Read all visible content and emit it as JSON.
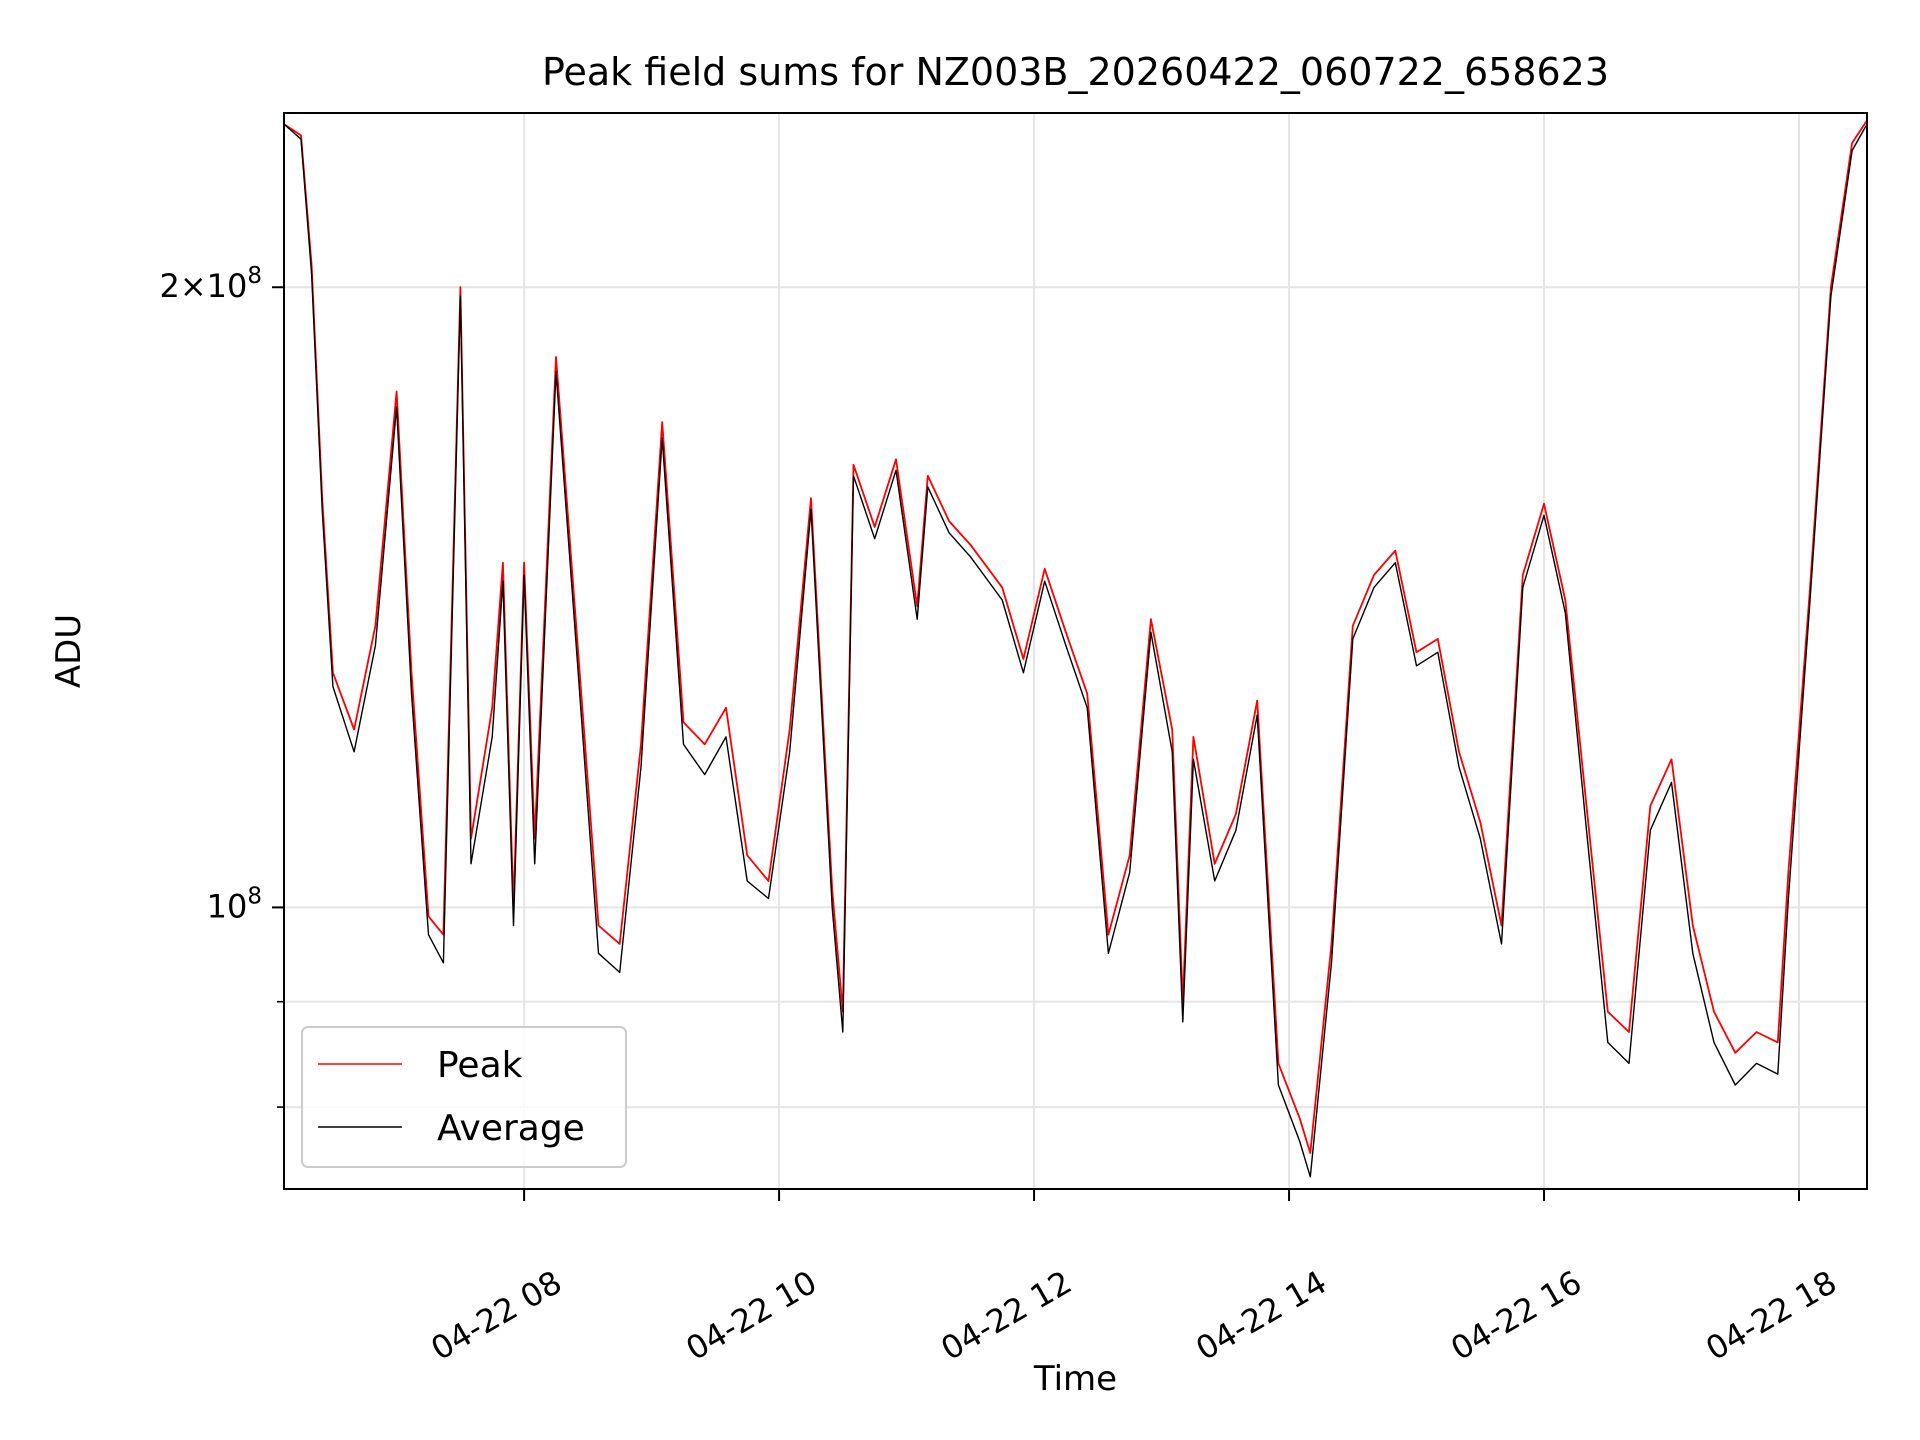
{
  "chart_data": {
    "type": "line",
    "title": "Peak field sums for NZ003B_20260422_060722_658623",
    "xlabel": "Time",
    "ylabel": "ADU",
    "yscale": "log",
    "ylim": [
      73000000,
      243000000
    ],
    "xlim": [
      "2026-04-22 06:07",
      "2026-04-22 18:32"
    ],
    "x_ticks": [
      {
        "t": "2026-04-22 08:00",
        "label": "04-22 08"
      },
      {
        "t": "2026-04-22 10:00",
        "label": "04-22 10"
      },
      {
        "t": "2026-04-22 12:00",
        "label": "04-22 12"
      },
      {
        "t": "2026-04-22 14:00",
        "label": "04-22 14"
      },
      {
        "t": "2026-04-22 16:00",
        "label": "04-22 16"
      },
      {
        "t": "2026-04-22 18:00",
        "label": "04-22 18"
      }
    ],
    "y_major_ticks": [
      {
        "value": 100000000,
        "base": "10",
        "exp": "8",
        "coef": ""
      },
      {
        "value": 200000000,
        "base": "10",
        "exp": "8",
        "coef": "2"
      }
    ],
    "y_minor_ticks": [
      80000000,
      90000000
    ],
    "grid": true,
    "legend_position": "lower-left",
    "series": [
      {
        "name": "Peak",
        "color": "#ff0000",
        "x": [
          "2026-04-22 06:07",
          "2026-04-22 06:15",
          "2026-04-22 06:20",
          "2026-04-22 06:25",
          "2026-04-22 06:30",
          "2026-04-22 06:40",
          "2026-04-22 06:50",
          "2026-04-22 07:00",
          "2026-04-22 07:07",
          "2026-04-22 07:15",
          "2026-04-22 07:22",
          "2026-04-22 07:30",
          "2026-04-22 07:35",
          "2026-04-22 07:45",
          "2026-04-22 07:50",
          "2026-04-22 07:55",
          "2026-04-22 08:00",
          "2026-04-22 08:05",
          "2026-04-22 08:15",
          "2026-04-22 08:25",
          "2026-04-22 08:35",
          "2026-04-22 08:45",
          "2026-04-22 08:55",
          "2026-04-22 09:05",
          "2026-04-22 09:15",
          "2026-04-22 09:25",
          "2026-04-22 09:35",
          "2026-04-22 09:45",
          "2026-04-22 09:55",
          "2026-04-22 10:05",
          "2026-04-22 10:15",
          "2026-04-22 10:25",
          "2026-04-22 10:30",
          "2026-04-22 10:35",
          "2026-04-22 10:45",
          "2026-04-22 10:55",
          "2026-04-22 11:05",
          "2026-04-22 11:10",
          "2026-04-22 11:20",
          "2026-04-22 11:30",
          "2026-04-22 11:45",
          "2026-04-22 11:55",
          "2026-04-22 12:05",
          "2026-04-22 12:15",
          "2026-04-22 12:25",
          "2026-04-22 12:35",
          "2026-04-22 12:45",
          "2026-04-22 12:55",
          "2026-04-22 13:05",
          "2026-04-22 13:10",
          "2026-04-22 13:15",
          "2026-04-22 13:25",
          "2026-04-22 13:35",
          "2026-04-22 13:45",
          "2026-04-22 13:55",
          "2026-04-22 14:05",
          "2026-04-22 14:10",
          "2026-04-22 14:20",
          "2026-04-22 14:30",
          "2026-04-22 14:40",
          "2026-04-22 14:50",
          "2026-04-22 15:00",
          "2026-04-22 15:10",
          "2026-04-22 15:20",
          "2026-04-22 15:30",
          "2026-04-22 15:40",
          "2026-04-22 15:50",
          "2026-04-22 16:00",
          "2026-04-22 16:10",
          "2026-04-22 16:20",
          "2026-04-22 16:30",
          "2026-04-22 16:40",
          "2026-04-22 16:50",
          "2026-04-22 17:00",
          "2026-04-22 17:10",
          "2026-04-22 17:20",
          "2026-04-22 17:30",
          "2026-04-22 17:40",
          "2026-04-22 17:50",
          "2026-04-22 17:55",
          "2026-04-22 18:05",
          "2026-04-22 18:15",
          "2026-04-22 18:25",
          "2026-04-22 18:32"
        ],
        "y": [
          240000000,
          237000000,
          205000000,
          158000000,
          130000000,
          122000000,
          137000000,
          178000000,
          130000000,
          99000000,
          97000000,
          200000000,
          108000000,
          125000000,
          147000000,
          100000000,
          147000000,
          108000000,
          185000000,
          135000000,
          98000000,
          96000000,
          120000000,
          172000000,
          123000000,
          120000000,
          125000000,
          106000000,
          103000000,
          122000000,
          158000000,
          102000000,
          89000000,
          164000000,
          153000000,
          165000000,
          140000000,
          162000000,
          154000000,
          150000000,
          143000000,
          132000000,
          146000000,
          136000000,
          127000000,
          97000000,
          106000000,
          138000000,
          122000000,
          90000000,
          121000000,
          105000000,
          111000000,
          126000000,
          84000000,
          79000000,
          76000000,
          96000000,
          137000000,
          145000000,
          149000000,
          133000000,
          135000000,
          119000000,
          110000000,
          98000000,
          145000000,
          157000000,
          141000000,
          112000000,
          89000000,
          87000000,
          112000000,
          118000000,
          98000000,
          89000000,
          85000000,
          87000000,
          86000000,
          104000000,
          142000000,
          200000000,
          235000000,
          241000000
        ]
      },
      {
        "name": "Average",
        "color": "#000000",
        "x": [
          "2026-04-22 06:07",
          "2026-04-22 06:15",
          "2026-04-22 06:20",
          "2026-04-22 06:25",
          "2026-04-22 06:30",
          "2026-04-22 06:40",
          "2026-04-22 06:50",
          "2026-04-22 07:00",
          "2026-04-22 07:07",
          "2026-04-22 07:15",
          "2026-04-22 07:22",
          "2026-04-22 07:30",
          "2026-04-22 07:35",
          "2026-04-22 07:45",
          "2026-04-22 07:50",
          "2026-04-22 07:55",
          "2026-04-22 08:00",
          "2026-04-22 08:05",
          "2026-04-22 08:15",
          "2026-04-22 08:25",
          "2026-04-22 08:35",
          "2026-04-22 08:45",
          "2026-04-22 08:55",
          "2026-04-22 09:05",
          "2026-04-22 09:15",
          "2026-04-22 09:25",
          "2026-04-22 09:35",
          "2026-04-22 09:45",
          "2026-04-22 09:55",
          "2026-04-22 10:05",
          "2026-04-22 10:15",
          "2026-04-22 10:25",
          "2026-04-22 10:30",
          "2026-04-22 10:35",
          "2026-04-22 10:45",
          "2026-04-22 10:55",
          "2026-04-22 11:05",
          "2026-04-22 11:10",
          "2026-04-22 11:20",
          "2026-04-22 11:30",
          "2026-04-22 11:45",
          "2026-04-22 11:55",
          "2026-04-22 12:05",
          "2026-04-22 12:15",
          "2026-04-22 12:25",
          "2026-04-22 12:35",
          "2026-04-22 12:45",
          "2026-04-22 12:55",
          "2026-04-22 13:05",
          "2026-04-22 13:10",
          "2026-04-22 13:15",
          "2026-04-22 13:25",
          "2026-04-22 13:35",
          "2026-04-22 13:45",
          "2026-04-22 13:55",
          "2026-04-22 14:05",
          "2026-04-22 14:10",
          "2026-04-22 14:20",
          "2026-04-22 14:30",
          "2026-04-22 14:40",
          "2026-04-22 14:50",
          "2026-04-22 15:00",
          "2026-04-22 15:10",
          "2026-04-22 15:20",
          "2026-04-22 15:30",
          "2026-04-22 15:40",
          "2026-04-22 15:50",
          "2026-04-22 16:00",
          "2026-04-22 16:10",
          "2026-04-22 16:20",
          "2026-04-22 16:30",
          "2026-04-22 16:40",
          "2026-04-22 16:50",
          "2026-04-22 17:00",
          "2026-04-22 17:10",
          "2026-04-22 17:20",
          "2026-04-22 17:30",
          "2026-04-22 17:40",
          "2026-04-22 17:50",
          "2026-04-22 17:55",
          "2026-04-22 18:05",
          "2026-04-22 18:15",
          "2026-04-22 18:25",
          "2026-04-22 18:32"
        ],
        "y": [
          240000000,
          236000000,
          203000000,
          156000000,
          128000000,
          119000000,
          134000000,
          175000000,
          127000000,
          97000000,
          94000000,
          198000000,
          105000000,
          121000000,
          144000000,
          98000000,
          145000000,
          105000000,
          182000000,
          132000000,
          95000000,
          93000000,
          117000000,
          169000000,
          120000000,
          116000000,
          121000000,
          103000000,
          101000000,
          119000000,
          156000000,
          100000000,
          87000000,
          162000000,
          151000000,
          163000000,
          138000000,
          160000000,
          152000000,
          148000000,
          141000000,
          130000000,
          144000000,
          134000000,
          125000000,
          95000000,
          104000000,
          136000000,
          119000000,
          88000000,
          118000000,
          103000000,
          109000000,
          124000000,
          82000000,
          77000000,
          74000000,
          94000000,
          135000000,
          143000000,
          147000000,
          131000000,
          133000000,
          117000000,
          108000000,
          96000000,
          143000000,
          155000000,
          139000000,
          109000000,
          86000000,
          84000000,
          109000000,
          115000000,
          95000000,
          86000000,
          82000000,
          84000000,
          83000000,
          101000000,
          140000000,
          198000000,
          233000000,
          240000000
        ]
      }
    ]
  }
}
